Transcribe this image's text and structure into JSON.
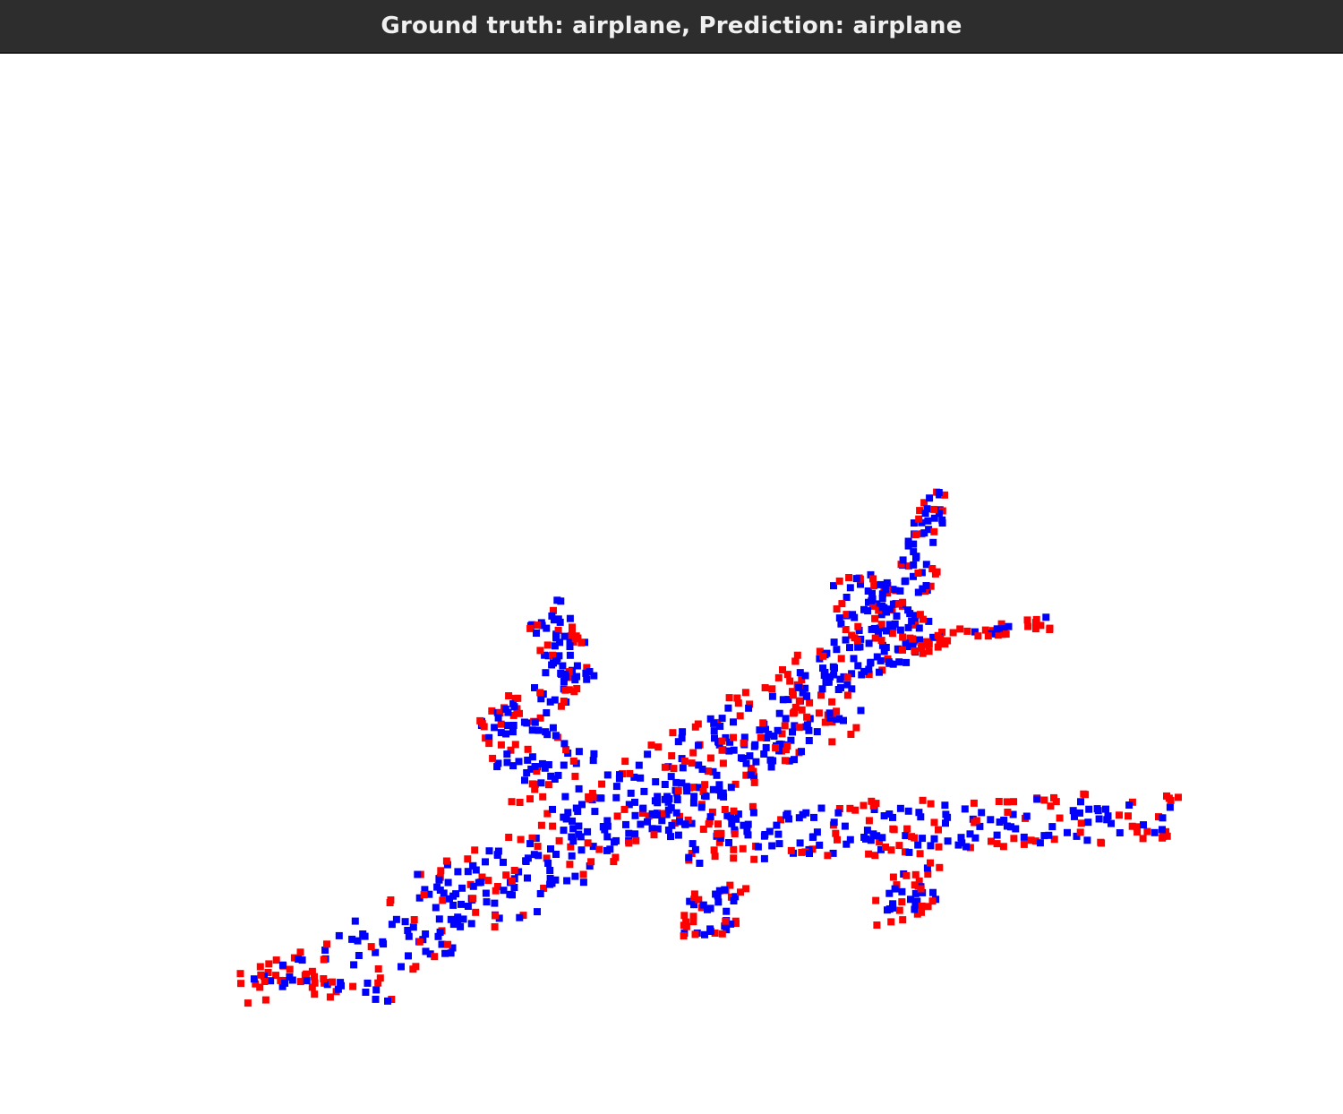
{
  "window": {
    "title": "Ground truth: airplane, Prediction: airplane"
  },
  "point_cloud": {
    "shape": "airplane",
    "colors": {
      "red": "#ff0000",
      "blue": "#0000ff"
    }
  }
}
